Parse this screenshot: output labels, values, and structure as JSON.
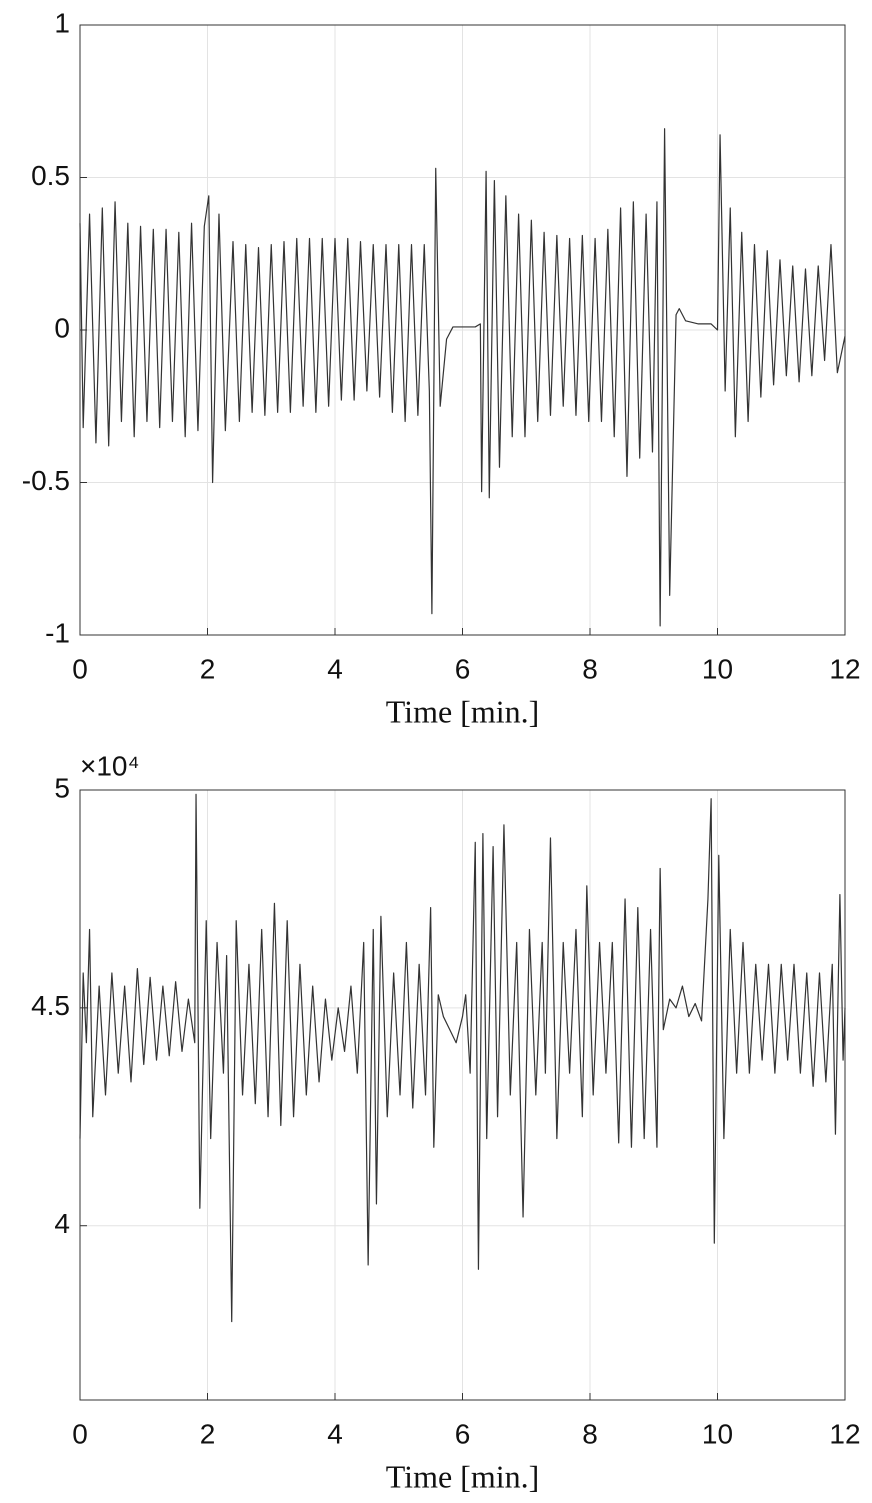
{
  "chart_data": [
    {
      "type": "line",
      "xlabel": "Time [min.]",
      "color": "#333333",
      "grid": true,
      "xlim": [
        0,
        12
      ],
      "xticks": [
        0,
        2,
        4,
        6,
        8,
        10,
        12
      ],
      "ylim": [
        -1,
        1
      ],
      "yticks": [
        -1,
        -0.5,
        0,
        0.5,
        1
      ],
      "x": [
        0,
        0.05,
        0.15,
        0.25,
        0.35,
        0.45,
        0.55,
        0.65,
        0.75,
        0.85,
        0.95,
        1.05,
        1.15,
        1.25,
        1.35,
        1.45,
        1.55,
        1.65,
        1.75,
        1.85,
        1.95,
        2.02,
        2.08,
        2.18,
        2.28,
        2.4,
        2.5,
        2.6,
        2.7,
        2.8,
        2.9,
        3.0,
        3.1,
        3.2,
        3.3,
        3.4,
        3.5,
        3.6,
        3.7,
        3.8,
        3.9,
        4.0,
        4.1,
        4.2,
        4.3,
        4.4,
        4.5,
        4.6,
        4.7,
        4.8,
        4.9,
        5.0,
        5.1,
        5.2,
        5.3,
        5.4,
        5.48,
        5.52,
        5.58,
        5.65,
        5.75,
        5.85,
        6.0,
        6.2,
        6.28,
        6.3,
        6.37,
        6.42,
        6.5,
        6.58,
        6.68,
        6.78,
        6.88,
        6.98,
        7.08,
        7.18,
        7.28,
        7.38,
        7.48,
        7.58,
        7.68,
        7.78,
        7.88,
        7.98,
        8.08,
        8.18,
        8.28,
        8.38,
        8.48,
        8.58,
        8.68,
        8.78,
        8.88,
        8.98,
        9.05,
        9.1,
        9.17,
        9.25,
        9.35,
        9.4,
        9.5,
        9.7,
        9.9,
        10.0,
        10.04,
        10.12,
        10.2,
        10.28,
        10.38,
        10.48,
        10.58,
        10.68,
        10.78,
        10.88,
        10.98,
        11.08,
        11.18,
        11.28,
        11.38,
        11.48,
        11.58,
        11.68,
        11.78,
        11.88,
        12.0
      ],
      "values": [
        0.35,
        -0.32,
        0.38,
        -0.37,
        0.4,
        -0.38,
        0.42,
        -0.3,
        0.35,
        -0.35,
        0.34,
        -0.3,
        0.33,
        -0.32,
        0.33,
        -0.3,
        0.32,
        -0.35,
        0.35,
        -0.33,
        0.34,
        0.44,
        -0.5,
        0.38,
        -0.33,
        0.29,
        -0.3,
        0.28,
        -0.27,
        0.27,
        -0.28,
        0.28,
        -0.27,
        0.29,
        -0.27,
        0.3,
        -0.25,
        0.3,
        -0.27,
        0.3,
        -0.25,
        0.3,
        -0.23,
        0.3,
        -0.23,
        0.29,
        -0.2,
        0.28,
        -0.22,
        0.28,
        -0.27,
        0.28,
        -0.3,
        0.28,
        -0.28,
        0.28,
        -0.2,
        -0.93,
        0.53,
        -0.25,
        -0.03,
        0.01,
        0.01,
        0.01,
        0.02,
        -0.53,
        0.52,
        -0.55,
        0.49,
        -0.45,
        0.44,
        -0.35,
        0.38,
        -0.35,
        0.36,
        -0.3,
        0.32,
        -0.28,
        0.31,
        -0.25,
        0.3,
        -0.28,
        0.31,
        -0.3,
        0.3,
        -0.3,
        0.33,
        -0.35,
        0.4,
        -0.48,
        0.42,
        -0.42,
        0.38,
        -0.4,
        0.42,
        -0.97,
        0.66,
        -0.87,
        0.05,
        0.07,
        0.03,
        0.02,
        0.02,
        0.0,
        0.64,
        -0.2,
        0.4,
        -0.35,
        0.32,
        -0.3,
        0.28,
        -0.22,
        0.26,
        -0.18,
        0.23,
        -0.15,
        0.21,
        -0.17,
        0.2,
        -0.15,
        0.21,
        -0.1,
        0.28,
        -0.14,
        -0.02
      ]
    },
    {
      "type": "line",
      "xlabel": "Time [min.]",
      "color": "#333333",
      "grid": true,
      "exponent_label": "×10⁴",
      "xlim": [
        0,
        12
      ],
      "xticks": [
        0,
        2,
        4,
        6,
        8,
        10,
        12
      ],
      "ylim": [
        36000,
        50000
      ],
      "yticks": [
        {
          "value": 40000,
          "label": "4"
        },
        {
          "value": 45000,
          "label": "4.5"
        },
        {
          "value": 50000,
          "label": "5"
        }
      ],
      "x": [
        0,
        0.05,
        0.1,
        0.15,
        0.2,
        0.3,
        0.4,
        0.5,
        0.6,
        0.7,
        0.8,
        0.9,
        1.0,
        1.1,
        1.2,
        1.3,
        1.4,
        1.5,
        1.6,
        1.7,
        1.8,
        1.82,
        1.88,
        1.98,
        2.05,
        2.15,
        2.25,
        2.3,
        2.38,
        2.45,
        2.55,
        2.65,
        2.75,
        2.85,
        2.95,
        3.05,
        3.15,
        3.25,
        3.35,
        3.45,
        3.55,
        3.65,
        3.75,
        3.85,
        3.95,
        4.05,
        4.15,
        4.25,
        4.35,
        4.45,
        4.52,
        4.6,
        4.65,
        4.72,
        4.82,
        4.92,
        5.02,
        5.12,
        5.22,
        5.32,
        5.42,
        5.5,
        5.55,
        5.62,
        5.7,
        5.8,
        5.9,
        6.0,
        6.05,
        6.12,
        6.2,
        6.25,
        6.32,
        6.38,
        6.48,
        6.55,
        6.65,
        6.75,
        6.85,
        6.95,
        7.05,
        7.15,
        7.25,
        7.3,
        7.38,
        7.48,
        7.58,
        7.68,
        7.78,
        7.88,
        7.95,
        8.05,
        8.15,
        8.25,
        8.35,
        8.45,
        8.55,
        8.65,
        8.75,
        8.85,
        8.95,
        9.05,
        9.1,
        9.15,
        9.25,
        9.35,
        9.45,
        9.55,
        9.65,
        9.75,
        9.85,
        9.9,
        9.95,
        10.02,
        10.1,
        10.2,
        10.3,
        10.4,
        10.5,
        10.6,
        10.7,
        10.8,
        10.9,
        11.0,
        11.1,
        11.2,
        11.3,
        11.4,
        11.5,
        11.6,
        11.7,
        11.8,
        11.85,
        11.92,
        11.97,
        12.0
      ],
      "values": [
        42000,
        45800,
        44200,
        46800,
        42500,
        45500,
        43000,
        45800,
        43500,
        45500,
        43300,
        45900,
        43700,
        45700,
        43800,
        45500,
        43900,
        45600,
        44000,
        45200,
        44200,
        49900,
        40400,
        47000,
        42000,
        46500,
        43500,
        46200,
        37800,
        47000,
        43000,
        46000,
        42800,
        46800,
        42500,
        47400,
        42300,
        47000,
        42500,
        46000,
        43000,
        45500,
        43300,
        45200,
        43800,
        45000,
        44000,
        45500,
        43500,
        46500,
        39100,
        46800,
        40500,
        47100,
        42500,
        45800,
        43000,
        46500,
        42700,
        46000,
        43000,
        47300,
        41800,
        45300,
        44800,
        44500,
        44200,
        44800,
        45300,
        43500,
        48800,
        39000,
        49000,
        42000,
        48700,
        42500,
        49200,
        43000,
        46500,
        40200,
        46800,
        43000,
        46500,
        43500,
        48900,
        42000,
        46500,
        43500,
        46800,
        42500,
        47800,
        43000,
        46500,
        43500,
        46500,
        41900,
        47500,
        41800,
        47300,
        42000,
        46800,
        41800,
        48200,
        44500,
        45200,
        45000,
        45500,
        44800,
        45100,
        44700,
        47500,
        49800,
        39600,
        48500,
        42000,
        46800,
        43500,
        46500,
        43500,
        46000,
        43800,
        46000,
        43500,
        46000,
        43800,
        46000,
        43500,
        45800,
        43200,
        45800,
        43300,
        46000,
        42100,
        47600,
        43800,
        45000
      ]
    }
  ]
}
